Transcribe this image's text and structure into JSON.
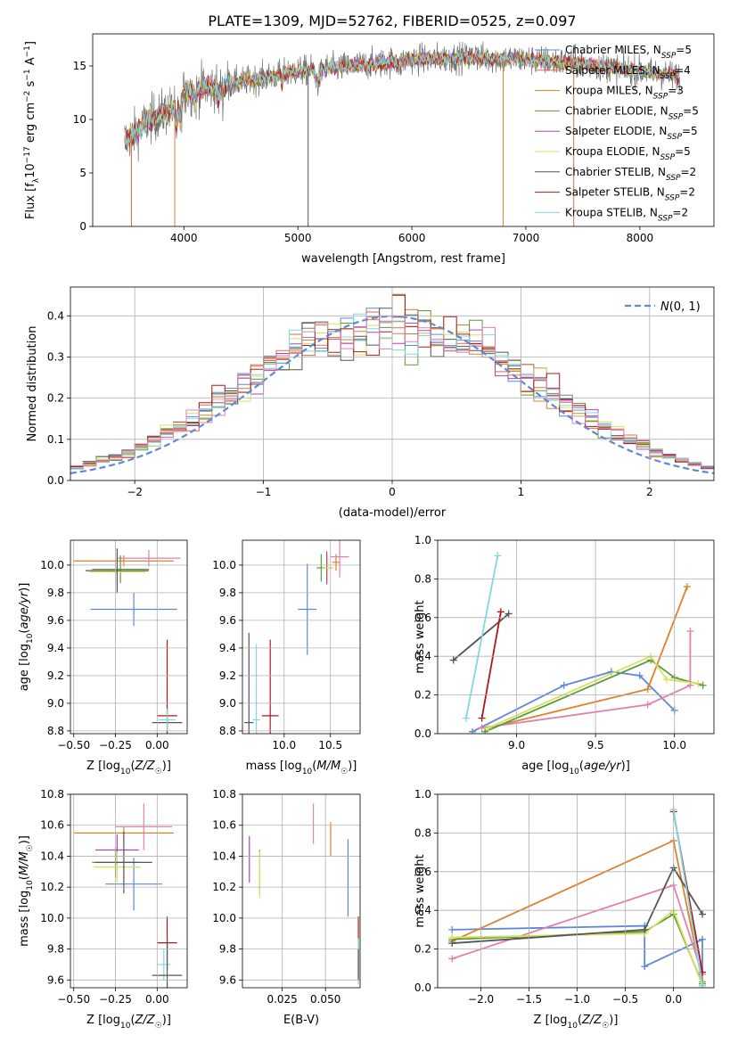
{
  "figure_title": "PLATE=1309, MJD=52762, FIBERID=0525, z=0.097",
  "colors": {
    "Chabrier MILES": "#5f87d8",
    "Salpeter MILES": "#e06a4a",
    "Kroupa MILES": "#e0802a",
    "Chabrier ELODIE": "#5a9a3a",
    "Salpeter ELODIE": "#b040c0",
    "Kroupa ELODIE": "#d8e060",
    "Chabrier STELIB": "#555555",
    "Salpeter STELIB": "#b01818",
    "Kroupa STELIB": "#80d8e0",
    "pink": "#e080b0"
  },
  "chart_data": [
    {
      "id": "spectrum",
      "type": "line",
      "xlabel": "wavelength [Angstrom, rest frame]",
      "ylabel": "Flux [f_λ10^-17 erg cm^-2 s^-1 A^-1]",
      "xlim": [
        3200,
        8650
      ],
      "ylim": [
        0,
        18
      ],
      "xticks": [
        4000,
        5000,
        6000,
        7000,
        8000
      ],
      "yticks": [
        0,
        5,
        10,
        15
      ],
      "grid": false,
      "legend_position": "top-right",
      "legend": [
        {
          "label": "Chabrier MILES, N",
          "sub": "SSP",
          "suffix": "=5"
        },
        {
          "label": "Salpeter MILES, N",
          "sub": "SSP",
          "suffix": "=4"
        },
        {
          "label": "Kroupa MILES, N",
          "sub": "SSP",
          "suffix": "=3"
        },
        {
          "label": "Chabrier ELODIE, N",
          "sub": "SSP",
          "suffix": "=5"
        },
        {
          "label": "Salpeter ELODIE, N",
          "sub": "SSP",
          "suffix": "=5"
        },
        {
          "label": "Kroupa ELODIE, N",
          "sub": "SSP",
          "suffix": "=5"
        },
        {
          "label": "Chabrier STELIB, N",
          "sub": "SSP",
          "suffix": "=2"
        },
        {
          "label": "Salpeter STELIB, N",
          "sub": "SSP",
          "suffix": "=2"
        },
        {
          "label": "Kroupa STELIB, N",
          "sub": "SSP",
          "suffix": "=2"
        }
      ],
      "continuum": [
        [
          3480,
          8.0
        ],
        [
          3600,
          9.0
        ],
        [
          3700,
          10.0
        ],
        [
          3800,
          10.5
        ],
        [
          3900,
          11.0
        ],
        [
          4000,
          12.5
        ],
        [
          4200,
          13.0
        ],
        [
          4500,
          13.5
        ],
        [
          5000,
          14.5
        ],
        [
          5500,
          15.0
        ],
        [
          6000,
          15.6
        ],
        [
          6500,
          15.8
        ],
        [
          7000,
          15.6
        ],
        [
          7500,
          15.2
        ],
        [
          8000,
          14.5
        ],
        [
          8350,
          14.0
        ]
      ],
      "features": [
        [
          3934,
          -2.5,
          12
        ],
        [
          3968,
          -2.2,
          12
        ],
        [
          4102,
          -1.0,
          10
        ],
        [
          4304,
          -1.2,
          15
        ],
        [
          4340,
          -1.0,
          10
        ],
        [
          4861,
          -0.8,
          10
        ],
        [
          5175,
          -1.2,
          25
        ],
        [
          5893,
          -0.6,
          15
        ],
        [
          6563,
          0.6,
          8
        ]
      ],
      "spikes": [
        [
          3540,
          "Salpeter MILES"
        ],
        [
          3920,
          "Kroupa MILES"
        ],
        [
          5090,
          "Chabrier STELIB"
        ],
        [
          6800,
          "Kroupa MILES"
        ],
        [
          7420,
          "Salpeter MILES"
        ]
      ]
    },
    {
      "id": "residual-histogram",
      "type": "histogram",
      "xlabel": "(data-model)/error",
      "ylabel": "Normed distribution",
      "xlim": [
        -2.5,
        2.5
      ],
      "ylim": [
        0,
        0.47
      ],
      "xticks": [
        -2,
        -1,
        0,
        1,
        2
      ],
      "yticks": [
        0.0,
        0.1,
        0.2,
        0.3,
        0.4
      ],
      "grid": true,
      "legend_position": "top-right",
      "legend": [
        "N(0,1)"
      ],
      "bin_width": 0.1,
      "gaussian": {
        "mean": 0,
        "sigma": 1
      }
    },
    {
      "id": "age-vs-metallicity",
      "type": "errorbar",
      "xlabel": "Z [log10(Z/Z☉)]",
      "ylabel": "age [log10(age/yr)]",
      "xlim": [
        -0.52,
        0.18
      ],
      "ylim": [
        8.78,
        10.18
      ],
      "xticks": [
        -0.5,
        -0.25,
        0.0
      ],
      "yticks": [
        8.8,
        9.0,
        9.2,
        9.4,
        9.6,
        9.8,
        10.0
      ],
      "grid": true,
      "points": [
        {
          "series": "Chabrier MILES",
          "x": -0.14,
          "y": 9.68,
          "xerr": 0.26,
          "yerr": 0.12
        },
        {
          "series": "Kroupa MILES",
          "x": -0.2,
          "y": 10.03,
          "xerr": 0.3,
          "yerr": 0.04
        },
        {
          "series": "pink",
          "x": -0.05,
          "y": 10.05,
          "xerr": 0.19,
          "yerr": 0.06
        },
        {
          "series": "Chabrier ELODIE",
          "x": -0.22,
          "y": 9.97,
          "xerr": 0.17,
          "yerr": 0.1
        },
        {
          "series": "Kroupa ELODIE",
          "x": -0.24,
          "y": 9.95,
          "xerr": 0.17,
          "yerr": 0.1
        },
        {
          "series": "Chabrier STELIB",
          "x": -0.24,
          "y": 9.96,
          "xerr": 0.19,
          "yerr": 0.16
        },
        {
          "series": "Salpeter STELIB",
          "x": 0.06,
          "y": 8.91,
          "xerr": 0.06,
          "yerr": 0.55
        },
        {
          "series": "Chabrier STELIB",
          "x": 0.06,
          "y": 8.86,
          "xerr": 0.09,
          "yerr": 0.1
        },
        {
          "series": "Kroupa STELIB",
          "x": 0.06,
          "y": 8.88,
          "xerr": 0.05,
          "yerr": 0.08
        }
      ]
    },
    {
      "id": "age-vs-mass",
      "type": "errorbar",
      "xlabel": "mass [log10(M/M☉)]",
      "ylabel": "",
      "xlim": [
        9.55,
        10.82
      ],
      "ylim": [
        8.78,
        10.18
      ],
      "xticks": [
        10.0,
        10.5
      ],
      "yticks": [
        8.8,
        9.0,
        9.2,
        9.4,
        9.6,
        9.8,
        10.0
      ],
      "grid": true,
      "points": [
        {
          "series": "Chabrier MILES",
          "x": 10.25,
          "y": 9.68,
          "xerr": 0.1,
          "yerr": 0.33
        },
        {
          "series": "Kroupa MILES",
          "x": 10.56,
          "y": 10.02,
          "xerr": 0.04,
          "yerr": 0.06
        },
        {
          "series": "pink",
          "x": 10.6,
          "y": 10.06,
          "xerr": 0.1,
          "yerr": 0.15
        },
        {
          "series": "Chabrier ELODIE",
          "x": 10.4,
          "y": 9.98,
          "xerr": 0.05,
          "yerr": 0.1
        },
        {
          "series": "Salpeter ELODIE",
          "x": 10.46,
          "y": 9.98,
          "xerr": 0.05,
          "yerr": 0.12
        },
        {
          "series": "Kroupa ELODIE",
          "x": 10.47,
          "y": 9.98,
          "xerr": 0.06,
          "yerr": 0.1
        },
        {
          "series": "Chabrier STELIB",
          "x": 9.62,
          "y": 8.86,
          "xerr": 0.05,
          "yerr": 0.65
        },
        {
          "series": "Kroupa STELIB",
          "x": 9.7,
          "y": 8.88,
          "xerr": 0.04,
          "yerr": 0.55
        },
        {
          "series": "Salpeter STELIB",
          "x": 9.85,
          "y": 8.91,
          "xerr": 0.09,
          "yerr": 0.55
        }
      ]
    },
    {
      "id": "mass-weight-vs-age",
      "type": "line",
      "xlabel": "age [log10(age/yr)]",
      "ylabel": "mass weight",
      "xlim": [
        8.5,
        10.25
      ],
      "ylim": [
        0,
        1.0
      ],
      "xticks": [
        9.0,
        9.5,
        10.0
      ],
      "yticks": [
        0.0,
        0.2,
        0.4,
        0.6,
        0.8,
        1.0
      ],
      "grid": true,
      "series": [
        {
          "name": "Chabrier MILES",
          "points": [
            [
              8.72,
              0.01
            ],
            [
              9.3,
              0.25
            ],
            [
              9.6,
              0.32
            ],
            [
              9.78,
              0.3
            ],
            [
              10.0,
              0.12
            ]
          ]
        },
        {
          "name": "Kroupa MILES",
          "points": [
            [
              8.82,
              0.03
            ],
            [
              9.83,
              0.23
            ],
            [
              10.08,
              0.76
            ]
          ]
        },
        {
          "name": "pink",
          "points": [
            [
              8.78,
              0.03
            ],
            [
              9.83,
              0.15
            ],
            [
              10.1,
              0.25
            ],
            [
              10.1,
              0.53
            ]
          ]
        },
        {
          "name": "Chabrier ELODIE",
          "points": [
            [
              8.8,
              0.01
            ],
            [
              9.85,
              0.38
            ],
            [
              10.0,
              0.29
            ],
            [
              10.18,
              0.25
            ]
          ]
        },
        {
          "name": "Kroupa ELODIE",
          "points": [
            [
              8.82,
              0.03
            ],
            [
              9.85,
              0.4
            ],
            [
              9.95,
              0.28
            ],
            [
              10.15,
              0.26
            ]
          ]
        },
        {
          "name": "Chabrier STELIB",
          "points": [
            [
              8.6,
              0.38
            ],
            [
              8.95,
              0.62
            ]
          ]
        },
        {
          "name": "Salpeter STELIB",
          "points": [
            [
              8.78,
              0.08
            ],
            [
              8.9,
              0.63
            ]
          ]
        },
        {
          "name": "Kroupa STELIB",
          "points": [
            [
              8.68,
              0.08
            ],
            [
              8.88,
              0.92
            ]
          ]
        }
      ]
    },
    {
      "id": "mass-vs-metallicity",
      "type": "errorbar",
      "xlabel": "Z [log10(Z/Z☉)]",
      "ylabel": "mass [log10(M/M☉)]",
      "xlim": [
        -0.52,
        0.18
      ],
      "ylim": [
        9.55,
        10.8
      ],
      "xticks": [
        -0.5,
        -0.25,
        0.0
      ],
      "yticks": [
        9.6,
        9.8,
        10.0,
        10.2,
        10.4,
        10.6,
        10.8
      ],
      "grid": true,
      "points": [
        {
          "series": "Chabrier MILES",
          "x": -0.14,
          "y": 10.22,
          "xerr": 0.17,
          "yerr": 0.17
        },
        {
          "series": "Kroupa MILES",
          "x": -0.2,
          "y": 10.55,
          "xerr": 0.3,
          "yerr": 0.04
        },
        {
          "series": "pink",
          "x": -0.08,
          "y": 10.59,
          "xerr": 0.17,
          "yerr": 0.15
        },
        {
          "series": "Chabrier ELODIE",
          "x": -0.25,
          "y": 10.36,
          "xerr": 0.14,
          "yerr": 0.1
        },
        {
          "series": "Salpeter ELODIE",
          "x": -0.24,
          "y": 10.44,
          "xerr": 0.13,
          "yerr": 0.1
        },
        {
          "series": "Kroupa ELODIE",
          "x": -0.24,
          "y": 10.33,
          "xerr": 0.14,
          "yerr": 0.1
        },
        {
          "series": "Chabrier STELIB",
          "x": -0.2,
          "y": 10.36,
          "xerr": 0.17,
          "yerr": 0.2
        },
        {
          "series": "Salpeter STELIB",
          "x": 0.06,
          "y": 9.84,
          "xerr": 0.06,
          "yerr": 0.17
        },
        {
          "series": "Kroupa STELIB",
          "x": 0.04,
          "y": 9.7,
          "xerr": 0.04,
          "yerr": 0.1
        },
        {
          "series": "Chabrier STELIB",
          "x": 0.06,
          "y": 9.63,
          "xerr": 0.09,
          "yerr": 0.25
        }
      ]
    },
    {
      "id": "mass-vs-extinction",
      "type": "errorbar",
      "xlabel": "E(B-V)",
      "ylabel": "",
      "xlim": [
        0.002,
        0.07
      ],
      "ylim": [
        9.55,
        10.8
      ],
      "xticks": [
        0.025,
        0.05
      ],
      "yticks": [
        9.6,
        9.8,
        10.0,
        10.2,
        10.4,
        10.6,
        10.8
      ],
      "grid": true,
      "points": [
        {
          "series": "Salpeter ELODIE",
          "x": 0.006,
          "y": 10.38,
          "xerr": 0,
          "yerr": 0.15
        },
        {
          "series": "Chabrier ELODIE",
          "x": 0.012,
          "y": 10.3,
          "xerr": 0,
          "yerr": 0.14
        },
        {
          "series": "Kroupa ELODIE",
          "x": 0.012,
          "y": 10.28,
          "xerr": 0,
          "yerr": 0.15
        },
        {
          "series": "pink",
          "x": 0.043,
          "y": 10.61,
          "xerr": 0,
          "yerr": 0.13
        },
        {
          "series": "Kroupa MILES",
          "x": 0.053,
          "y": 10.51,
          "xerr": 0,
          "yerr": 0.11
        },
        {
          "series": "Chabrier MILES",
          "x": 0.063,
          "y": 10.26,
          "xerr": 0,
          "yerr": 0.25
        },
        {
          "series": "Salpeter STELIB",
          "x": 0.069,
          "y": 9.81,
          "xerr": 0,
          "yerr": 0.2
        },
        {
          "series": "Kroupa STELIB",
          "x": 0.069,
          "y": 9.72,
          "xerr": 0,
          "yerr": 0.15
        },
        {
          "series": "Chabrier STELIB",
          "x": 0.069,
          "y": 9.7,
          "xerr": 0,
          "yerr": 0.1
        }
      ]
    },
    {
      "id": "mass-weight-vs-metallicity",
      "type": "line",
      "xlabel": "Z [log10(Z/Z☉)]",
      "ylabel": "mass weight",
      "xlim": [
        -2.45,
        0.42
      ],
      "ylim": [
        0,
        1.0
      ],
      "xticks": [
        -2.0,
        -1.5,
        -1.0,
        -0.5,
        0.0
      ],
      "yticks": [
        0.0,
        0.2,
        0.4,
        0.6,
        0.8,
        1.0
      ],
      "grid": true,
      "series": [
        {
          "name": "Chabrier MILES",
          "points": [
            [
              -2.3,
              0.3
            ],
            [
              -0.3,
              0.32
            ],
            [
              -0.3,
              0.11
            ],
            [
              0.3,
              0.25
            ],
            [
              0.3,
              0.03
            ]
          ]
        },
        {
          "name": "Kroupa MILES",
          "points": [
            [
              -2.3,
              0.24
            ],
            [
              0.0,
              0.76
            ],
            [
              0.3,
              0.03
            ]
          ]
        },
        {
          "name": "pink",
          "points": [
            [
              -2.3,
              0.15
            ],
            [
              0.0,
              0.53
            ],
            [
              0.3,
              0.07
            ]
          ]
        },
        {
          "name": "Chabrier ELODIE",
          "points": [
            [
              -2.3,
              0.25
            ],
            [
              -0.3,
              0.29
            ],
            [
              0.0,
              0.38
            ],
            [
              0.3,
              0.02
            ]
          ]
        },
        {
          "name": "Kroupa ELODIE",
          "points": [
            [
              -2.3,
              0.26
            ],
            [
              -0.3,
              0.28
            ],
            [
              0.0,
              0.4
            ],
            [
              0.3,
              0.01
            ]
          ]
        },
        {
          "name": "Chabrier STELIB",
          "points": [
            [
              -2.3,
              0.23
            ],
            [
              -0.3,
              0.3
            ],
            [
              0.0,
              0.62
            ],
            [
              0.3,
              0.38
            ]
          ]
        },
        {
          "name": "Salpeter STELIB",
          "points": [
            [
              0.0,
              0.91
            ],
            [
              0.3,
              0.08
            ]
          ]
        },
        {
          "name": "Kroupa STELIB",
          "points": [
            [
              0.0,
              0.92
            ],
            [
              0.3,
              0.01
            ]
          ]
        }
      ]
    }
  ]
}
